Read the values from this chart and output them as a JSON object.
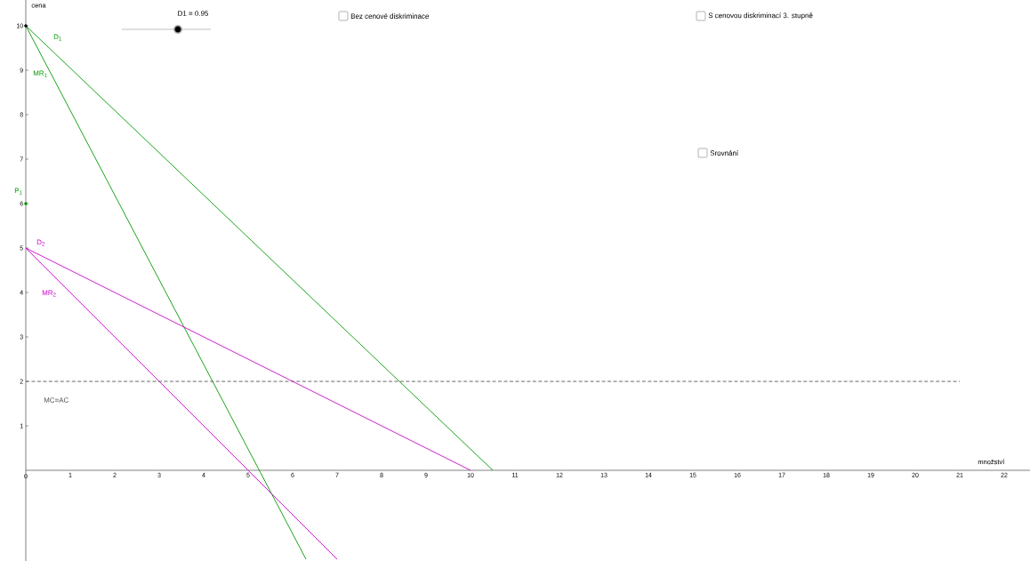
{
  "chart_data": {
    "type": "line",
    "xlabel": "množství",
    "ylabel": "cena",
    "xlim": [
      0,
      22.58
    ],
    "ylim": [
      -2.04,
      10.58
    ],
    "xticks": [
      0,
      1,
      2,
      3,
      4,
      5,
      6,
      7,
      8,
      9,
      10,
      11,
      12,
      13,
      14,
      15,
      16,
      17,
      18,
      19,
      20,
      21,
      22
    ],
    "yticks": [
      1,
      2,
      3,
      4,
      5,
      6,
      7,
      8,
      9,
      10
    ],
    "legend": false,
    "marker": "none",
    "series": [
      {
        "name": "D$_{1}$",
        "color": "#009900",
        "x": [
          0,
          10.5
        ],
        "values": [
          10,
          0
        ]
      },
      {
        "name": "MR$_{1}$",
        "color": "#009900",
        "x": [
          0,
          6.3
        ],
        "values": [
          10,
          -2
        ]
      },
      {
        "name": "D$_{2}$",
        "color": "#cc00cc",
        "x": [
          0,
          10
        ],
        "values": [
          5,
          0
        ]
      },
      {
        "name": "MR$_{2}$",
        "color": "#cc00cc",
        "x": [
          0,
          7
        ],
        "values": [
          5,
          -2
        ]
      },
      {
        "name": "MC=AC",
        "color": "#555555",
        "x": [
          0,
          21
        ],
        "values": [
          2,
          2
        ],
        "line_style": "dashed"
      },
      {
        "name": "P$_{1}$",
        "type": "scatter",
        "marker": "circle",
        "color": "#009900",
        "x": [
          0
        ],
        "values": [
          6
        ]
      },
      {
        "type": "scatter",
        "marker": "circle",
        "color": "#000000",
        "x": [
          0
        ],
        "values": [
          10
        ]
      }
    ],
    "annotations": [
      "D1 = 0.95",
      "Bez cenové diskriminace",
      "S cenovou diskriminací 3. stupně",
      "Srovnání"
    ]
  }
}
